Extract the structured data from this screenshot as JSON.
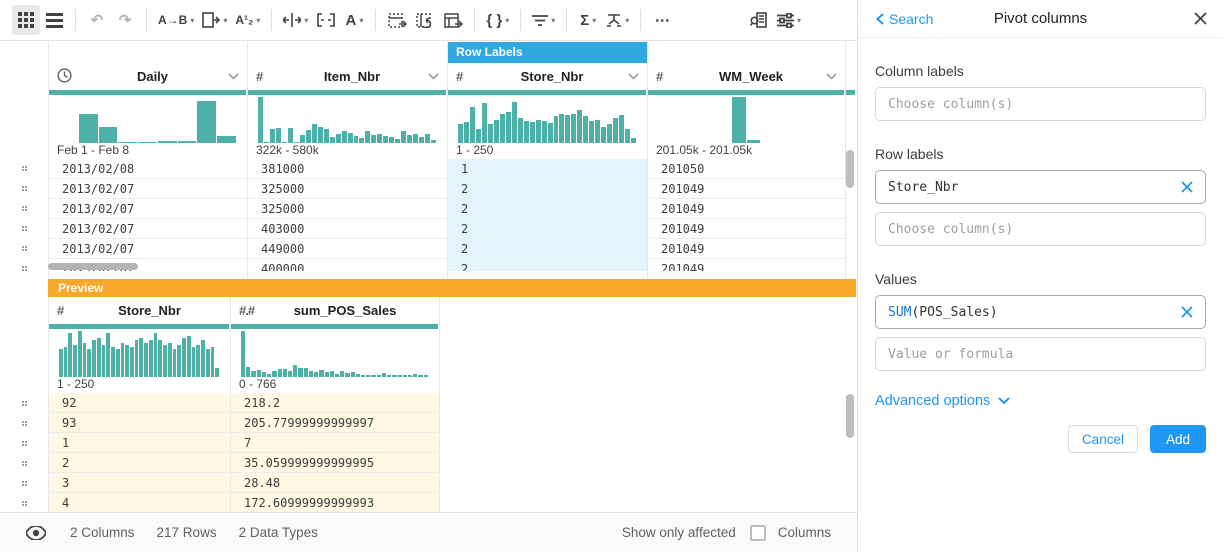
{
  "toolbar": {
    "glyphs": {
      "undo": "↶",
      "redo": "↷",
      "replace": "A→B",
      "sort": "A¹₂",
      "text": "A",
      "braces": "{ }",
      "sigma": "Σ",
      "more": "⋯"
    }
  },
  "grid": {
    "row_labels_tag": "Row Labels",
    "columns": [
      {
        "name": "Daily",
        "type_glyph": "",
        "range": "Feb 1 - Feb 8",
        "histogram": [
          0,
          0.62,
          0.35,
          0.03,
          0.03,
          0.05,
          0.04,
          0.92,
          0.15
        ],
        "cells": [
          "2013/02/08",
          "2013/02/07",
          "2013/02/07",
          "2013/02/07",
          "2013/02/07",
          "2013/02/07"
        ]
      },
      {
        "name": "Item_Nbr",
        "type_glyph": "#",
        "range": "322k - 580k",
        "histogram": [
          1,
          0.03,
          0.3,
          0.33,
          0.02,
          0.33,
          0.03,
          0.18,
          0.28,
          0.42,
          0.35,
          0.3,
          0.12,
          0.2,
          0.26,
          0.22,
          0.16,
          0.1,
          0.26,
          0.18,
          0.2,
          0.16,
          0.12,
          0.08,
          0.26,
          0.18,
          0.2,
          0.14,
          0.2,
          0.06
        ],
        "cells": [
          "381000",
          "325000",
          "325000",
          "403000",
          "449000",
          "400000"
        ]
      },
      {
        "name": "Store_Nbr",
        "type_glyph": "#",
        "range": "1 - 250",
        "histogram": [
          0.42,
          0.45,
          0.78,
          0.3,
          0.88,
          0.42,
          0.5,
          0.62,
          0.68,
          0.9,
          0.55,
          0.48,
          0.45,
          0.5,
          0.48,
          0.44,
          0.58,
          0.62,
          0.6,
          0.62,
          0.72,
          0.58,
          0.48,
          0.5,
          0.34,
          0.42,
          0.55,
          0.6,
          0.3,
          0.1
        ],
        "cells": [
          "1",
          "2",
          "2",
          "2",
          "2",
          "2"
        ]
      },
      {
        "name": "WM_Week",
        "type_glyph": "#",
        "range": "201.05k - 201.05k",
        "histogram": [
          0,
          0,
          0,
          0,
          0,
          1,
          0.06,
          0,
          0,
          0,
          0,
          0
        ],
        "cells": [
          "201050",
          "201049",
          "201049",
          "201049",
          "201049",
          "201049"
        ]
      }
    ]
  },
  "preview": {
    "label": "Preview",
    "columns": [
      {
        "name": "Store_Nbr",
        "type_glyph": "#",
        "range": "1 - 250",
        "histogram": [
          0.6,
          0.65,
          0.95,
          0.7,
          1,
          0.75,
          0.6,
          0.8,
          0.85,
          0.7,
          0.95,
          0.65,
          0.6,
          0.75,
          0.7,
          0.65,
          0.8,
          0.85,
          0.75,
          0.8,
          0.95,
          0.8,
          0.7,
          0.75,
          0.6,
          0.7,
          0.85,
          0.9,
          0.65,
          0.7,
          0.8,
          0.6,
          0.65,
          0.2
        ],
        "cells": [
          "92",
          "93",
          "1",
          "2",
          "3",
          "4"
        ]
      },
      {
        "name": "sum_POS_Sales",
        "type_glyph": "#.#",
        "range": "0 - 766",
        "histogram": [
          1,
          0.22,
          0.12,
          0.16,
          0.1,
          0.06,
          0.12,
          0.18,
          0.18,
          0.14,
          0.26,
          0.2,
          0.2,
          0.12,
          0.1,
          0.16,
          0.1,
          0.12,
          0.06,
          0.12,
          0.08,
          0.1,
          0.06,
          0.05,
          0.05,
          0.04,
          0.04,
          0.08,
          0.04,
          0.05,
          0.04,
          0.05,
          0.04,
          0.06,
          0.04,
          0.05
        ],
        "cells": [
          "218.2",
          "205.77999999999997",
          "7",
          "35.059999999999995",
          "28.48",
          "172.60999999999993"
        ]
      }
    ]
  },
  "statusbar": {
    "columns": "2 Columns",
    "rows": "217 Rows",
    "types": "2 Data Types",
    "show_only_affected": "Show only affected",
    "columns_toggle": "Columns"
  },
  "panel": {
    "back": "Search",
    "title": "Pivot columns",
    "column_labels": {
      "label": "Column labels",
      "placeholder": "Choose column(s)"
    },
    "row_labels": {
      "label": "Row labels",
      "chip": "Store_Nbr",
      "placeholder": "Choose column(s)"
    },
    "values": {
      "label": "Values",
      "chip_fn": "SUM",
      "chip_args": "(POS_Sales)",
      "placeholder": "Value or formula"
    },
    "advanced": "Advanced options",
    "cancel": "Cancel",
    "add": "Add"
  },
  "colors": {
    "teal": "#4db1a8",
    "tag_blue": "#2fa9e0",
    "preview_orange": "#f7a829",
    "accent_blue": "#2196f3",
    "selected_cell": "#e3f4fd",
    "preview_cell": "#fff8e5"
  }
}
